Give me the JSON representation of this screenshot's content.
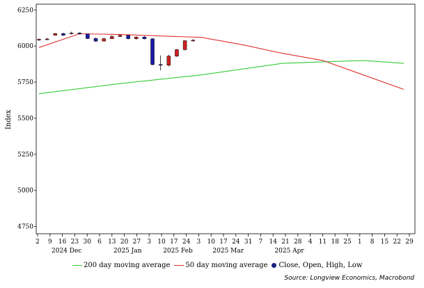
{
  "chart_data": {
    "type": "candlestick",
    "ylabel": "Index",
    "ylim": [
      4700,
      6290
    ],
    "yticks": [
      4750,
      5000,
      5250,
      5500,
      5750,
      6000,
      6250
    ],
    "x_tick_labels": [
      "2",
      "9",
      "16",
      "23",
      "30",
      "6",
      "13",
      "20",
      "27",
      "3",
      "10",
      "17",
      "24",
      "3",
      "10",
      "17",
      "24",
      "31",
      "7",
      "14",
      "21",
      "28",
      "4",
      "11",
      "18",
      "25",
      "1",
      "8",
      "15",
      "22",
      "29"
    ],
    "month_labels": [
      {
        "text": "2024 Dec",
        "after_tick": 0
      },
      {
        "text": "2025 Jan",
        "after_tick": 5
      },
      {
        "text": "2025 Feb",
        "after_tick": 9
      },
      {
        "text": "2025 Mar",
        "after_tick": 13
      },
      {
        "text": "2025 Apr",
        "after_tick": 18
      }
    ],
    "x_range_days": [
      0,
      45
    ],
    "candles": [
      {
        "d": 0,
        "o": 6042,
        "c": 6047,
        "h": 6052,
        "l": 6035
      },
      {
        "d": 1,
        "o": 6047,
        "c": 6049,
        "h": 6056,
        "l": 6040
      },
      {
        "d": 2,
        "o": 6075,
        "c": 6086,
        "h": 6090,
        "l": 6072
      },
      {
        "d": 3,
        "o": 6086,
        "c": 6075,
        "h": 6092,
        "l": 6070
      },
      {
        "d": 4,
        "o": 6090,
        "c": 6090,
        "h": 6099,
        "l": 6080
      },
      {
        "d": 5,
        "o": 6090,
        "c": 6084,
        "h": 6095,
        "l": 6080
      },
      {
        "d": 6,
        "o": 6084,
        "c": 6052,
        "h": 6085,
        "l": 6048
      },
      {
        "d": 7,
        "o": 6052,
        "c": 6034,
        "h": 6059,
        "l": 6030
      },
      {
        "d": 8,
        "o": 6034,
        "c": 6051,
        "h": 6057,
        "l": 6032
      },
      {
        "d": 9,
        "o": 6051,
        "c": 6066,
        "h": 6075,
        "l": 6050
      },
      {
        "d": 10,
        "o": 6066,
        "c": 6074,
        "h": 6082,
        "l": 6062
      },
      {
        "d": 11,
        "o": 6074,
        "c": 6051,
        "h": 6078,
        "l": 6046
      },
      {
        "d": 12,
        "o": 6051,
        "c": 6062,
        "h": 6068,
        "l": 6044
      },
      {
        "d": 13,
        "o": 6062,
        "c": 6050,
        "h": 6070,
        "l": 6046
      },
      {
        "d": 14,
        "o": 6050,
        "c": 5872,
        "h": 6055,
        "l": 5866
      },
      {
        "d": 15,
        "o": 5872,
        "c": 5867,
        "h": 5935,
        "l": 5832
      },
      {
        "d": 16,
        "o": 5867,
        "c": 5930,
        "h": 5940,
        "l": 5860
      },
      {
        "d": 17,
        "o": 5930,
        "c": 5975,
        "h": 5980,
        "l": 5925
      },
      {
        "d": 18,
        "o": 5975,
        "c": 6037,
        "h": 6040,
        "l": 5970
      },
      {
        "d": 19,
        "o": 6037,
        "c": 6040,
        "h": 6049,
        "l": 6030
      }
    ],
    "series": [
      {
        "name": "200 day moving average",
        "color": "#33cc33",
        "x": [
          0,
          10,
          20,
          30,
          40,
          45
        ],
        "values": [
          5670,
          5740,
          5800,
          5880,
          5900,
          5880
        ]
      },
      {
        "name": "50 day moving average",
        "color": "#e03030",
        "x": [
          0,
          5,
          10,
          15,
          20,
          25,
          30,
          35,
          40,
          45
        ],
        "values": [
          5990,
          6085,
          6080,
          6070,
          6060,
          6010,
          5950,
          5900,
          5800,
          5700
        ]
      },
      {
        "name": "Close, Open, High, Low",
        "color": "#1a237e"
      }
    ],
    "up_color": "#cc2222",
    "down_color": "#1a1aaa"
  },
  "source": "Source: Longview Economics, Macrobond"
}
